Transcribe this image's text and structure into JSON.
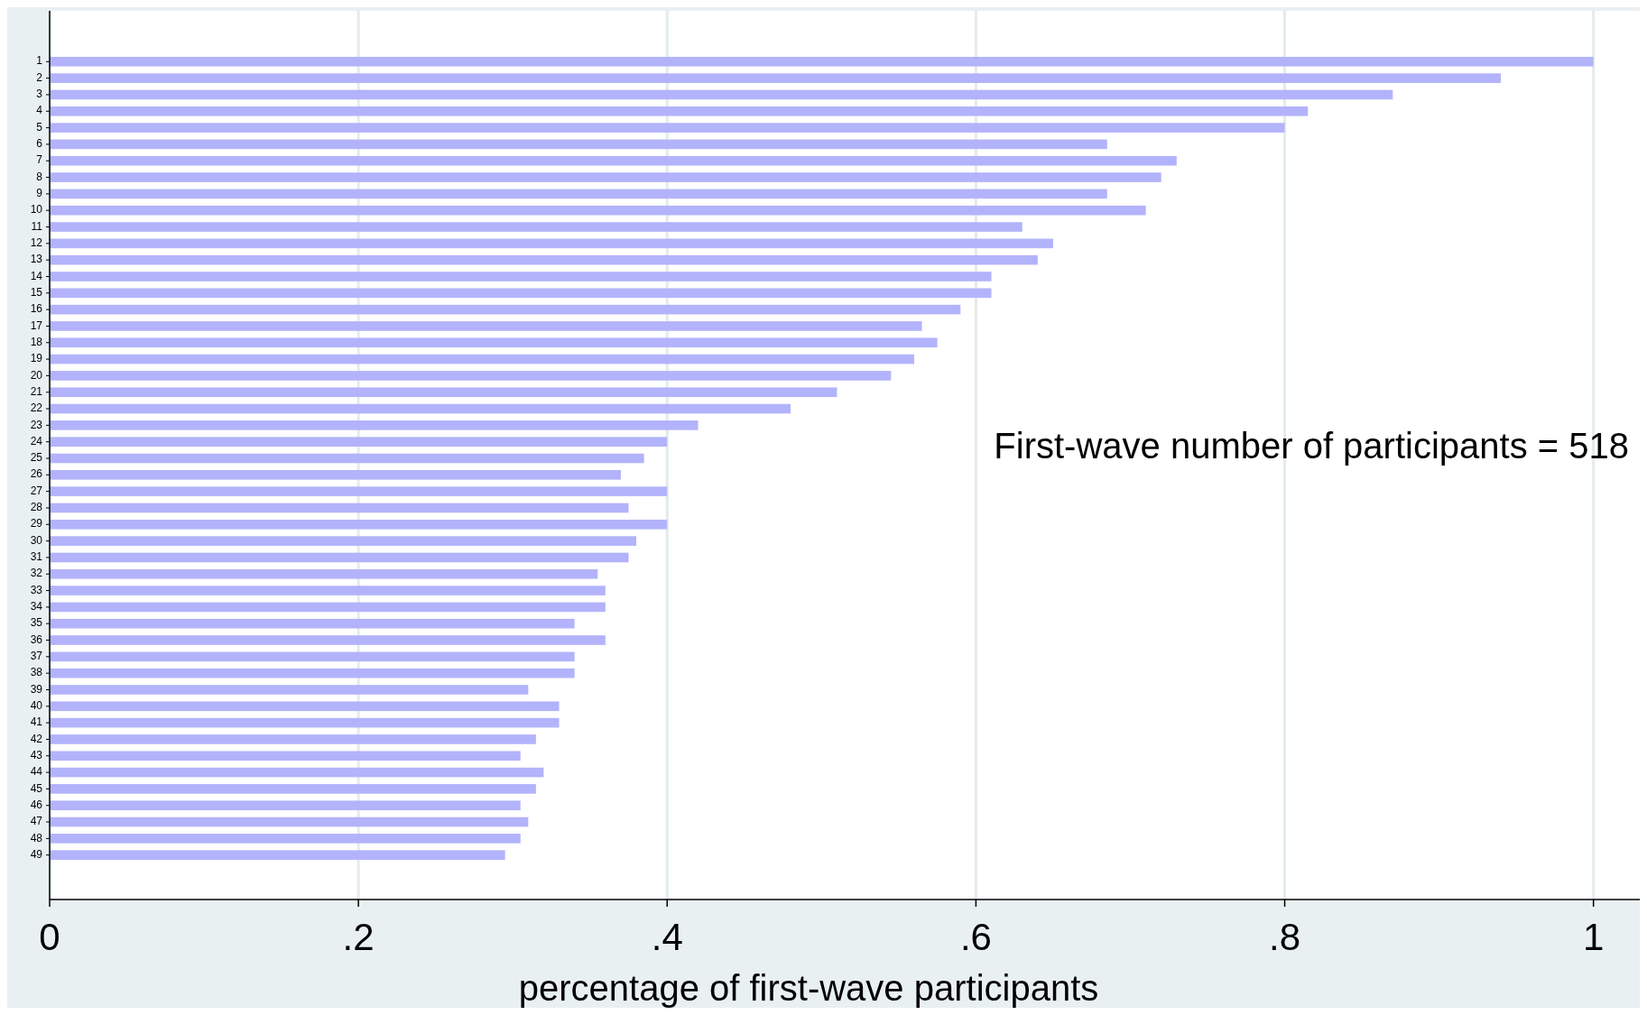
{
  "chart_data": {
    "type": "bar",
    "orientation": "horizontal",
    "xlabel": "percentage of first-wave participants",
    "categories": [
      "1",
      "2",
      "3",
      "4",
      "5",
      "6",
      "7",
      "8",
      "9",
      "10",
      "11",
      "12",
      "13",
      "14",
      "15",
      "16",
      "17",
      "18",
      "19",
      "20",
      "21",
      "22",
      "23",
      "24",
      "25",
      "26",
      "27",
      "28",
      "29",
      "30",
      "31",
      "32",
      "33",
      "34",
      "35",
      "36",
      "37",
      "38",
      "39",
      "40",
      "41",
      "42",
      "43",
      "44",
      "45",
      "46",
      "47",
      "48",
      "49"
    ],
    "values": [
      1.0,
      0.94,
      0.87,
      0.815,
      0.8,
      0.685,
      0.73,
      0.72,
      0.685,
      0.71,
      0.63,
      0.65,
      0.64,
      0.61,
      0.61,
      0.59,
      0.565,
      0.575,
      0.56,
      0.545,
      0.51,
      0.48,
      0.42,
      0.4,
      0.385,
      0.37,
      0.4,
      0.375,
      0.4,
      0.38,
      0.375,
      0.355,
      0.36,
      0.36,
      0.34,
      0.36,
      0.34,
      0.34,
      0.31,
      0.33,
      0.33,
      0.315,
      0.305,
      0.32,
      0.315,
      0.305,
      0.31,
      0.305,
      0.295
    ],
    "color": "#b3b3fb",
    "xlim": [
      0,
      1.03
    ],
    "xticks": [
      0,
      {
        "value": 0.2,
        "label": ".2"
      },
      {
        "value": 0.4,
        "label": ".4"
      },
      {
        "value": 0.6,
        "label": ".6"
      },
      {
        "value": 0.8,
        "label": ".8"
      },
      1
    ],
    "grid": "x",
    "annotations": [
      "First-wave number of participants = 518"
    ]
  }
}
